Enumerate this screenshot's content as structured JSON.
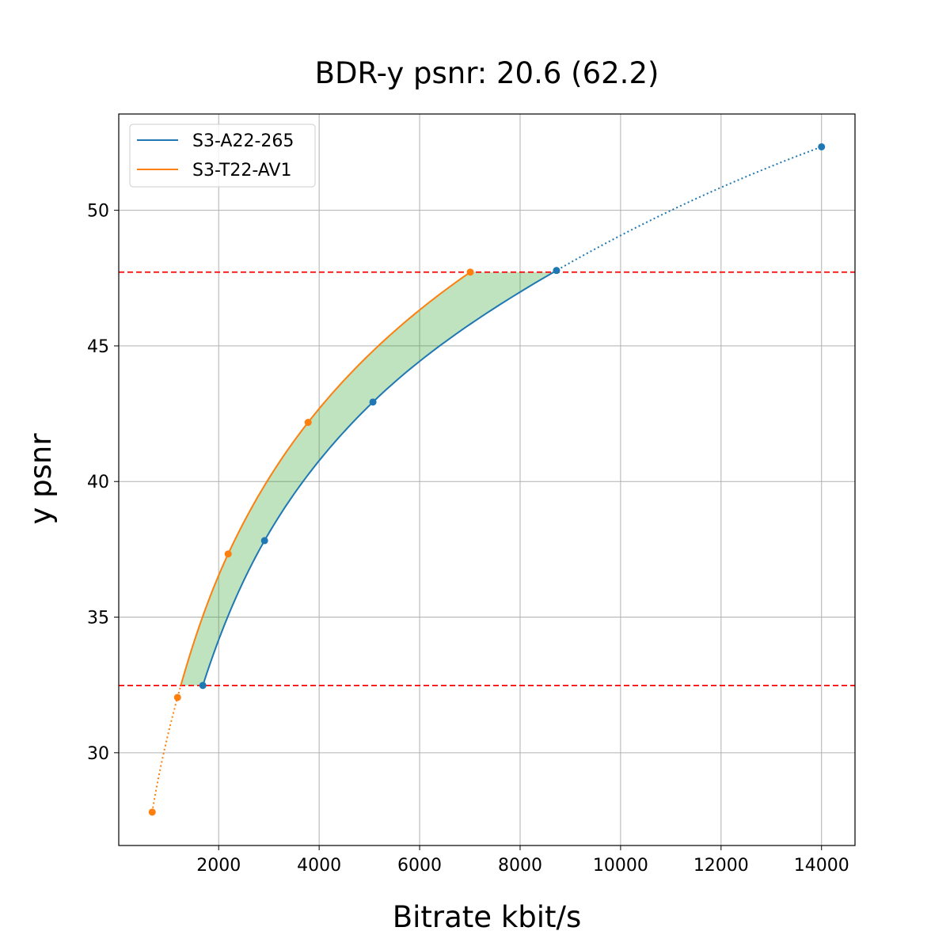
{
  "chart_data": {
    "type": "line",
    "title": "BDR-y psnr: 20.6 (62.2)",
    "xlabel": "Bitrate kbit/s",
    "ylabel": "y psnr",
    "xlim": [
      11,
      14666
    ],
    "ylim": [
      26.58,
      53.55
    ],
    "xticks": [
      2000,
      4000,
      6000,
      8000,
      10000,
      12000,
      14000
    ],
    "yticks": [
      30,
      35,
      40,
      45,
      50
    ],
    "grid": true,
    "legend_position": "top-left",
    "series": [
      {
        "name": "S3-A22-265",
        "color": "#1f77b4",
        "x": [
          1685,
          2913,
          5071,
          8724,
          14000
        ],
        "y": [
          32.48,
          37.82,
          42.93,
          47.78,
          52.34
        ]
      },
      {
        "name": "S3-T22-AV1",
        "color": "#ff7f0e",
        "x": [
          677,
          1181,
          2189,
          3780,
          7008
        ],
        "y": [
          27.81,
          32.04,
          37.33,
          42.18,
          47.72
        ]
      }
    ],
    "overlap_range": [
      32.48,
      47.72
    ],
    "reference_lines": {
      "color": "#ff0000",
      "style": "dashed",
      "y": [
        32.48,
        47.72
      ]
    },
    "fill_color": "#2ca02c"
  }
}
